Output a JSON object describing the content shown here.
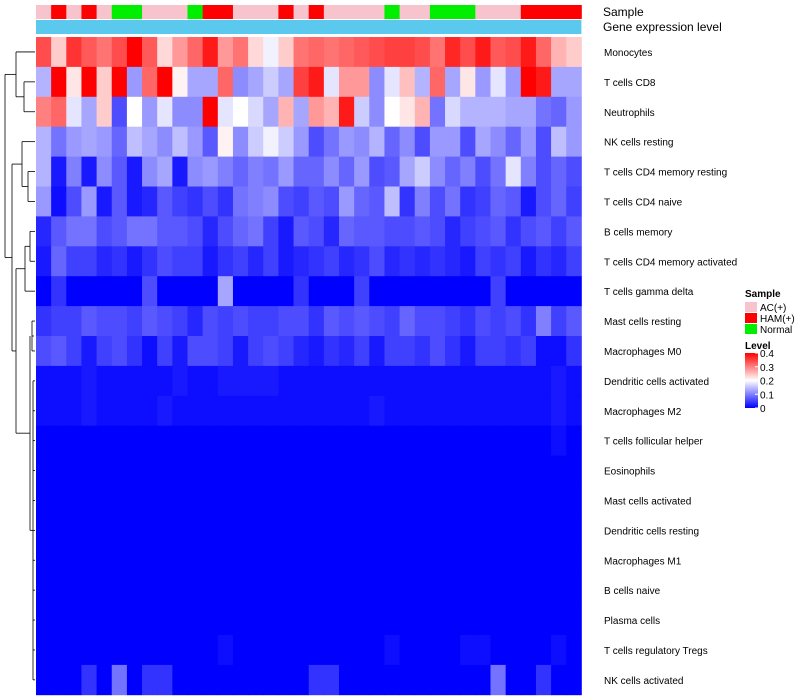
{
  "chart_data": {
    "type": "heatmap",
    "title": "",
    "annotation_labels": [
      "Sample",
      "Gene expression level"
    ],
    "sample_groups": [
      "AC(+)",
      "HAM(+)",
      "AC(+)",
      "HAM(+)",
      "AC(+)",
      "Normal",
      "Normal",
      "AC(+)",
      "AC(+)",
      "AC(+)",
      "Normal",
      "HAM(+)",
      "HAM(+)",
      "AC(+)",
      "AC(+)",
      "AC(+)",
      "HAM(+)",
      "AC(+)",
      "HAM(+)",
      "AC(+)",
      "AC(+)",
      "AC(+)",
      "AC(+)",
      "Normal",
      "AC(+)",
      "AC(+)",
      "Normal",
      "Normal",
      "Normal",
      "AC(+)",
      "AC(+)",
      "AC(+)",
      "HAM(+)",
      "HAM(+)",
      "HAM(+)",
      "HAM(+)"
    ],
    "rows": [
      "Monocytes",
      "T cells CD8",
      "Neutrophils",
      "NK cells resting",
      "T cells CD4 memory resting",
      "T cells CD4 naive",
      "B cells memory",
      "T cells CD4 memory activated",
      "T cells gamma delta",
      "Mast cells resting",
      "Macrophages M0",
      "Dendritic cells activated",
      "Macrophages M2",
      "T cells follicular helper",
      "Eosinophils",
      "Mast cells activated",
      "Dendritic cells resting",
      "Macrophages M1",
      "B cells naive",
      "Plasma cells",
      "T cells regulatory  Tregs",
      "NK cells activated"
    ],
    "values": [
      [
        0.34,
        0.24,
        0.36,
        0.33,
        0.31,
        0.34,
        0.4,
        0.33,
        0.23,
        0.28,
        0.32,
        0.38,
        0.28,
        0.31,
        0.23,
        0.19,
        0.24,
        0.31,
        0.32,
        0.31,
        0.32,
        0.33,
        0.34,
        0.35,
        0.35,
        0.34,
        0.31,
        0.37,
        0.34,
        0.38,
        0.33,
        0.34,
        0.38,
        0.32,
        0.26,
        0.24
      ],
      [
        0.14,
        0.42,
        0.22,
        0.42,
        0.24,
        0.42,
        0.12,
        0.32,
        0.42,
        0.21,
        0.13,
        0.13,
        0.32,
        0.11,
        0.13,
        0.16,
        0.13,
        0.35,
        0.38,
        0.18,
        0.28,
        0.28,
        0.11,
        0.18,
        0.25,
        0.14,
        0.32,
        0.13,
        0.22,
        0.12,
        0.18,
        0.12,
        0.42,
        0.38,
        0.13,
        0.13
      ],
      [
        0.3,
        0.32,
        0.18,
        0.13,
        0.24,
        0.06,
        0.2,
        0.12,
        0.18,
        0.11,
        0.11,
        0.4,
        0.18,
        0.2,
        0.17,
        0.13,
        0.26,
        0.13,
        0.28,
        0.26,
        0.38,
        0.16,
        0.11,
        0.2,
        0.22,
        0.26,
        0.09,
        0.17,
        0.14,
        0.14,
        0.14,
        0.13,
        0.13,
        0.09,
        0.08,
        0.12
      ],
      [
        0.14,
        0.09,
        0.12,
        0.13,
        0.12,
        0.08,
        0.15,
        0.13,
        0.11,
        0.15,
        0.12,
        0.07,
        0.21,
        0.11,
        0.16,
        0.19,
        0.16,
        0.12,
        0.06,
        0.09,
        0.12,
        0.11,
        0.14,
        0.08,
        0.11,
        0.06,
        0.12,
        0.12,
        0.06,
        0.13,
        0.11,
        0.08,
        0.12,
        0.06,
        0.15,
        0.12
      ],
      [
        0.14,
        0.02,
        0.1,
        0.02,
        0.11,
        0.07,
        0.02,
        0.11,
        0.13,
        0.02,
        0.11,
        0.12,
        0.1,
        0.08,
        0.1,
        0.09,
        0.12,
        0.08,
        0.08,
        0.11,
        0.08,
        0.12,
        0.06,
        0.07,
        0.13,
        0.16,
        0.11,
        0.08,
        0.1,
        0.06,
        0.09,
        0.18,
        0.1,
        0.06,
        0.08,
        0.06
      ],
      [
        0.12,
        0.01,
        0.06,
        0.12,
        0.02,
        0.07,
        0.02,
        0.03,
        0.07,
        0.05,
        0.04,
        0.06,
        0.04,
        0.09,
        0.1,
        0.11,
        0.06,
        0.05,
        0.07,
        0.06,
        0.12,
        0.08,
        0.07,
        0.15,
        0.04,
        0.1,
        0.06,
        0.09,
        0.04,
        0.05,
        0.08,
        0.07,
        0.02,
        0.06,
        0.08,
        0.05
      ],
      [
        0.03,
        0.07,
        0.09,
        0.09,
        0.06,
        0.07,
        0.09,
        0.09,
        0.07,
        0.07,
        0.06,
        0.03,
        0.06,
        0.08,
        0.09,
        0.05,
        0.02,
        0.07,
        0.06,
        0.03,
        0.08,
        0.07,
        0.07,
        0.06,
        0.06,
        0.07,
        0.06,
        0.03,
        0.05,
        0.06,
        0.07,
        0.04,
        0.06,
        0.07,
        0.05,
        0.07
      ],
      [
        0.02,
        0.08,
        0.05,
        0.05,
        0.03,
        0.04,
        0.02,
        0.04,
        0.06,
        0.05,
        0.05,
        0.02,
        0.04,
        0.05,
        0.03,
        0.05,
        0.02,
        0.03,
        0.04,
        0.05,
        0.03,
        0.04,
        0.06,
        0.03,
        0.04,
        0.03,
        0.04,
        0.03,
        0.02,
        0.05,
        0.04,
        0.05,
        0.02,
        0.04,
        0.03,
        0.05
      ],
      [
        0.0,
        0.04,
        0.0,
        0.0,
        0.0,
        0.0,
        0.0,
        0.06,
        0.0,
        0.0,
        0.0,
        0.0,
        0.13,
        0.0,
        0.0,
        0.0,
        0.0,
        0.04,
        0.0,
        0.0,
        0.0,
        0.05,
        0.0,
        0.0,
        0.0,
        0.0,
        0.0,
        0.0,
        0.0,
        0.0,
        0.05,
        0.0,
        0.0,
        0.0,
        0.0,
        0.0
      ],
      [
        0.04,
        0.05,
        0.05,
        0.07,
        0.06,
        0.06,
        0.05,
        0.07,
        0.06,
        0.05,
        0.03,
        0.06,
        0.05,
        0.06,
        0.05,
        0.05,
        0.06,
        0.06,
        0.04,
        0.07,
        0.06,
        0.07,
        0.06,
        0.05,
        0.08,
        0.06,
        0.06,
        0.05,
        0.04,
        0.06,
        0.05,
        0.06,
        0.04,
        0.1,
        0.05,
        0.07
      ],
      [
        0.06,
        0.07,
        0.05,
        0.02,
        0.05,
        0.06,
        0.04,
        0.01,
        0.05,
        0.02,
        0.06,
        0.06,
        0.05,
        0.02,
        0.05,
        0.06,
        0.05,
        0.03,
        0.02,
        0.04,
        0.03,
        0.05,
        0.02,
        0.05,
        0.05,
        0.04,
        0.06,
        0.04,
        0.02,
        0.05,
        0.05,
        0.04,
        0.05,
        0.01,
        0.01,
        0.04
      ],
      [
        0.01,
        0.01,
        0.01,
        0.02,
        0.01,
        0.01,
        0.01,
        0.01,
        0.01,
        0.02,
        0.01,
        0.01,
        0.02,
        0.02,
        0.02,
        0.02,
        0.01,
        0.01,
        0.01,
        0.01,
        0.01,
        0.01,
        0.01,
        0.01,
        0.01,
        0.01,
        0.01,
        0.01,
        0.01,
        0.01,
        0.01,
        0.01,
        0.01,
        0.01,
        0.02,
        0.01
      ],
      [
        0.01,
        0.01,
        0.01,
        0.02,
        0.01,
        0.01,
        0.01,
        0.01,
        0.02,
        0.01,
        0.01,
        0.01,
        0.01,
        0.01,
        0.01,
        0.01,
        0.01,
        0.01,
        0.01,
        0.01,
        0.01,
        0.01,
        0.02,
        0.01,
        0.01,
        0.01,
        0.01,
        0.01,
        0.01,
        0.01,
        0.01,
        0.01,
        0.01,
        0.01,
        0.02,
        0.01
      ],
      [
        0.0,
        0.0,
        0.0,
        0.0,
        0.0,
        0.0,
        0.0,
        0.0,
        0.0,
        0.0,
        0.0,
        0.0,
        0.0,
        0.0,
        0.0,
        0.0,
        0.0,
        0.0,
        0.0,
        0.0,
        0.0,
        0.0,
        0.0,
        0.0,
        0.0,
        0.0,
        0.0,
        0.0,
        0.0,
        0.0,
        0.0,
        0.0,
        0.0,
        0.0,
        0.01,
        0.0
      ],
      [
        0.0,
        0.0,
        0.0,
        0.0,
        0.0,
        0.0,
        0.0,
        0.0,
        0.0,
        0.0,
        0.0,
        0.0,
        0.0,
        0.0,
        0.0,
        0.0,
        0.0,
        0.0,
        0.0,
        0.0,
        0.0,
        0.0,
        0.0,
        0.0,
        0.0,
        0.0,
        0.0,
        0.0,
        0.0,
        0.0,
        0.0,
        0.0,
        0.0,
        0.0,
        0.0,
        0.0
      ],
      [
        0.0,
        0.0,
        0.0,
        0.0,
        0.0,
        0.0,
        0.0,
        0.0,
        0.0,
        0.0,
        0.0,
        0.0,
        0.0,
        0.0,
        0.0,
        0.0,
        0.0,
        0.0,
        0.0,
        0.0,
        0.0,
        0.0,
        0.0,
        0.0,
        0.0,
        0.0,
        0.0,
        0.0,
        0.0,
        0.0,
        0.0,
        0.0,
        0.0,
        0.0,
        0.0,
        0.0
      ],
      [
        0.0,
        0.0,
        0.0,
        0.0,
        0.0,
        0.0,
        0.0,
        0.0,
        0.0,
        0.0,
        0.0,
        0.0,
        0.0,
        0.0,
        0.0,
        0.0,
        0.0,
        0.0,
        0.0,
        0.0,
        0.0,
        0.0,
        0.0,
        0.0,
        0.0,
        0.0,
        0.0,
        0.0,
        0.0,
        0.0,
        0.0,
        0.0,
        0.0,
        0.0,
        0.0,
        0.0
      ],
      [
        0.0,
        0.0,
        0.0,
        0.0,
        0.0,
        0.0,
        0.0,
        0.0,
        0.0,
        0.0,
        0.0,
        0.0,
        0.0,
        0.0,
        0.0,
        0.0,
        0.0,
        0.0,
        0.0,
        0.0,
        0.0,
        0.0,
        0.0,
        0.0,
        0.0,
        0.0,
        0.0,
        0.0,
        0.0,
        0.0,
        0.0,
        0.0,
        0.0,
        0.0,
        0.0,
        0.0
      ],
      [
        0.0,
        0.0,
        0.0,
        0.0,
        0.0,
        0.0,
        0.0,
        0.0,
        0.0,
        0.0,
        0.0,
        0.0,
        0.0,
        0.0,
        0.0,
        0.0,
        0.0,
        0.0,
        0.0,
        0.0,
        0.0,
        0.0,
        0.0,
        0.0,
        0.0,
        0.0,
        0.0,
        0.0,
        0.0,
        0.0,
        0.0,
        0.0,
        0.0,
        0.0,
        0.0,
        0.0
      ],
      [
        0.0,
        0.0,
        0.0,
        0.0,
        0.0,
        0.0,
        0.0,
        0.0,
        0.0,
        0.0,
        0.0,
        0.0,
        0.0,
        0.0,
        0.0,
        0.0,
        0.0,
        0.0,
        0.0,
        0.0,
        0.0,
        0.0,
        0.0,
        0.0,
        0.0,
        0.0,
        0.0,
        0.0,
        0.0,
        0.0,
        0.0,
        0.0,
        0.0,
        0.0,
        0.0,
        0.0
      ],
      [
        0.0,
        0.0,
        0.0,
        0.0,
        0.0,
        0.0,
        0.0,
        0.0,
        0.0,
        0.0,
        0.0,
        0.0,
        0.01,
        0.0,
        0.0,
        0.0,
        0.0,
        0.0,
        0.0,
        0.0,
        0.0,
        0.0,
        0.0,
        0.01,
        0.0,
        0.0,
        0.0,
        0.0,
        0.01,
        0.01,
        0.0,
        0.0,
        0.0,
        0.0,
        0.01,
        0.0
      ],
      [
        0.0,
        0.0,
        0.0,
        0.04,
        0.0,
        0.09,
        0.0,
        0.04,
        0.04,
        0.0,
        0.0,
        0.0,
        0.0,
        0.0,
        0.0,
        0.0,
        0.0,
        0.0,
        0.04,
        0.04,
        0.0,
        0.0,
        0.0,
        0.0,
        0.0,
        0.0,
        0.0,
        0.0,
        0.0,
        0.0,
        0.09,
        0.0,
        0.0,
        0.04,
        0.0,
        0.0
      ]
    ],
    "legend": {
      "sample_title": "Sample",
      "sample_entries": [
        {
          "label": "AC(+)",
          "color": "#f7c3cc"
        },
        {
          "label": "HAM(+)",
          "color": "#ff0000"
        },
        {
          "label": "Normal",
          "color": "#00ee00"
        }
      ],
      "level_title": "Level",
      "level_ticks": [
        0.4,
        0.3,
        0.2,
        0.1,
        0
      ],
      "range": [
        0,
        0.4
      ]
    },
    "colors": {
      "low": "#0000ff",
      "mid": "#ffffff",
      "high": "#ff0000",
      "expression_bar": "#5bc8ee"
    }
  }
}
